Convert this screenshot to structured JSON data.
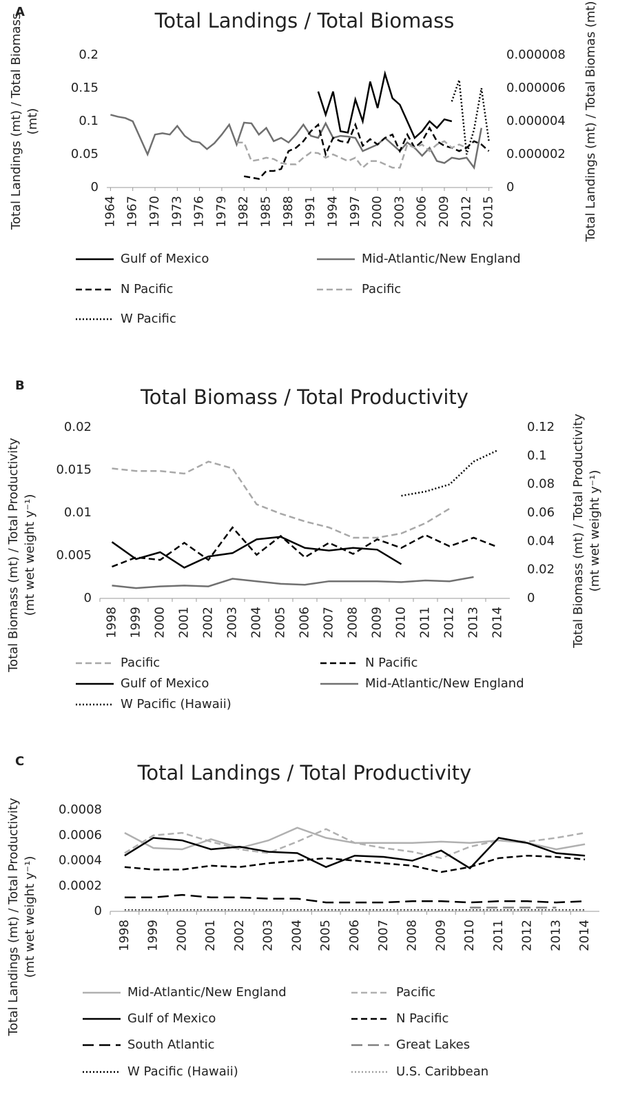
{
  "chart_data": [
    {
      "type": "line",
      "panel": "A",
      "title": "Total Landings / Total Biomass",
      "ylabel": [
        "Total Landings (mt) / Total Biomass",
        "(mt)"
      ],
      "y2label": [
        "Total Landings (mt) / Total Biomas (mt)"
      ],
      "x": [
        1964,
        1965,
        1966,
        1967,
        1968,
        1969,
        1970,
        1971,
        1972,
        1973,
        1974,
        1975,
        1976,
        1977,
        1978,
        1979,
        1980,
        1981,
        1982,
        1983,
        1984,
        1985,
        1986,
        1987,
        1988,
        1989,
        1990,
        1991,
        1992,
        1993,
        1994,
        1995,
        1996,
        1997,
        1998,
        1999,
        2000,
        2001,
        2002,
        2003,
        2004,
        2005,
        2006,
        2007,
        2008,
        2009,
        2010,
        2011,
        2012,
        2013,
        2014,
        2015
      ],
      "xlim": [
        1963.5,
        2015.5
      ],
      "xticks": [
        1964,
        1967,
        1970,
        1973,
        1976,
        1979,
        1982,
        1985,
        1988,
        1991,
        1994,
        1997,
        2000,
        2003,
        2006,
        2009,
        2012,
        2015
      ],
      "ylim": [
        0,
        0.2
      ],
      "yticks": [
        0,
        0.05,
        0.1,
        0.15,
        0.2
      ],
      "y2lim": [
        0,
        8e-06
      ],
      "y2ticks": [
        0,
        2e-06,
        4e-06,
        6e-06,
        8e-06
      ],
      "series": [
        {
          "name": "Gulf of Mexico",
          "color": "#000000",
          "style": "solid",
          "values": [
            null,
            null,
            null,
            null,
            null,
            null,
            null,
            null,
            null,
            null,
            null,
            null,
            null,
            null,
            null,
            null,
            null,
            null,
            null,
            null,
            null,
            null,
            null,
            null,
            null,
            null,
            null,
            null,
            0.145,
            0.11,
            0.145,
            0.085,
            0.083,
            0.133,
            0.1,
            0.16,
            0.12,
            0.172,
            0.135,
            0.125,
            0.1,
            0.075,
            0.085,
            0.1,
            0.09,
            0.103,
            0.1,
            null,
            null,
            null,
            null,
            null
          ]
        },
        {
          "name": "Mid-Atlantic/New England",
          "color": "#707070",
          "style": "solid",
          "values": [
            0.11,
            0.107,
            0.105,
            0.1,
            0.075,
            0.05,
            0.08,
            0.082,
            0.08,
            0.093,
            0.078,
            0.07,
            0.068,
            0.058,
            0.067,
            0.08,
            0.095,
            0.065,
            0.098,
            0.097,
            0.08,
            0.09,
            0.07,
            0.075,
            0.068,
            0.08,
            0.095,
            0.078,
            0.075,
            0.097,
            0.075,
            0.078,
            0.077,
            0.075,
            0.055,
            0.06,
            0.065,
            0.075,
            0.065,
            0.055,
            0.068,
            0.06,
            0.048,
            0.06,
            0.04,
            0.037,
            0.045,
            0.043,
            0.045,
            0.03,
            0.09,
            null
          ]
        },
        {
          "name": "N Pacific",
          "color": "#000000",
          "style": "dashed",
          "values": [
            null,
            null,
            null,
            null,
            null,
            null,
            null,
            null,
            null,
            null,
            null,
            null,
            null,
            null,
            null,
            null,
            null,
            null,
            0.017,
            0.015,
            0.013,
            0.025,
            0.025,
            0.028,
            0.055,
            0.06,
            0.07,
            0.085,
            0.095,
            0.05,
            0.075,
            0.07,
            0.068,
            0.095,
            0.063,
            0.073,
            0.065,
            0.075,
            0.08,
            0.055,
            0.08,
            0.06,
            0.07,
            0.09,
            0.07,
            0.063,
            0.06,
            0.055,
            0.06,
            0.07,
            0.065,
            0.055
          ]
        },
        {
          "name": "Pacific",
          "color": "#a8a8a8",
          "style": "dashed",
          "values": [
            null,
            null,
            null,
            null,
            null,
            null,
            null,
            null,
            null,
            null,
            null,
            null,
            null,
            null,
            null,
            null,
            null,
            0.068,
            0.068,
            0.04,
            0.042,
            0.045,
            0.043,
            0.037,
            0.035,
            0.035,
            0.045,
            0.053,
            0.052,
            0.045,
            0.05,
            0.045,
            0.04,
            0.045,
            0.03,
            0.04,
            0.04,
            0.035,
            0.03,
            0.03,
            0.065,
            0.06,
            0.065,
            0.055,
            0.065,
            0.07,
            0.06,
            0.065,
            0.06,
            null,
            null,
            null
          ]
        },
        {
          "name": "W Pacific",
          "color": "#000000",
          "style": "dotted",
          "axis": "y2",
          "values": [
            null,
            null,
            null,
            null,
            null,
            null,
            null,
            null,
            null,
            null,
            null,
            null,
            null,
            null,
            null,
            null,
            null,
            null,
            null,
            null,
            null,
            null,
            null,
            null,
            null,
            null,
            null,
            null,
            null,
            null,
            null,
            null,
            null,
            null,
            null,
            null,
            null,
            null,
            null,
            null,
            null,
            null,
            null,
            null,
            null,
            null,
            5.2e-06,
            6.5e-06,
            2e-06,
            3.5e-06,
            6e-06,
            2.8e-06
          ]
        }
      ]
    },
    {
      "type": "line",
      "panel": "B",
      "title": "Total Biomass / Total Productivity",
      "ylabel": [
        "Total Biomass (mt) / Total Productivity",
        "(mt wet weight y⁻¹)"
      ],
      "y2label": [
        "Total Biomass (mt) / Total Productivity",
        "(mt wet weight y⁻¹)"
      ],
      "categories": [
        "1998",
        "1999",
        "2000",
        "2001",
        "2002",
        "2003",
        "2004",
        "2005",
        "2006",
        "2007",
        "2008",
        "2009",
        "2010",
        "2011",
        "2012",
        "2013",
        "2014"
      ],
      "ylim": [
        0,
        0.02
      ],
      "yticks": [
        0,
        0.005,
        0.01,
        0.015,
        0.02
      ],
      "y2lim": [
        0,
        0.12
      ],
      "y2ticks": [
        0,
        0.02,
        0.04,
        0.06,
        0.08,
        0.1,
        0.12
      ],
      "series": [
        {
          "name": "Pacific",
          "color": "#a8a8a8",
          "style": "dashed",
          "values": [
            0.0152,
            0.0149,
            0.0149,
            0.0146,
            0.016,
            0.0152,
            0.011,
            0.0099,
            0.009,
            0.0083,
            0.0071,
            0.0071,
            0.0076,
            0.0088,
            0.0105,
            null,
            null
          ]
        },
        {
          "name": "N Pacific",
          "color": "#000000",
          "style": "dashed",
          "values": [
            0.0037,
            0.0048,
            0.0045,
            0.0065,
            0.0045,
            0.0083,
            0.0051,
            0.0073,
            0.0048,
            0.0065,
            0.0052,
            0.0069,
            0.0059,
            0.0074,
            0.0061,
            0.0071,
            0.006
          ]
        },
        {
          "name": "Gulf of Mexico",
          "color": "#000000",
          "style": "solid",
          "values": [
            0.0066,
            0.0046,
            0.0054,
            0.0036,
            0.0049,
            0.0053,
            0.0069,
            0.0072,
            0.0059,
            0.0056,
            0.0059,
            0.0057,
            0.004,
            null,
            null,
            null,
            null
          ]
        },
        {
          "name": "Mid-Atlantic/New England",
          "color": "#707070",
          "style": "solid",
          "values": [
            0.0015,
            0.0012,
            0.0014,
            0.0015,
            0.0014,
            0.0023,
            0.002,
            0.0017,
            0.0016,
            0.002,
            0.002,
            0.002,
            0.0019,
            0.0021,
            0.002,
            0.0025,
            null
          ]
        },
        {
          "name": "W Pacific (Hawaii)",
          "color": "#000000",
          "style": "dotted",
          "axis": "y2",
          "values": [
            null,
            null,
            null,
            null,
            null,
            null,
            null,
            null,
            null,
            null,
            null,
            null,
            0.072,
            0.075,
            0.08,
            0.096,
            0.104
          ]
        }
      ]
    },
    {
      "type": "line",
      "panel": "C",
      "title": "Total Landings / Total Productivity",
      "ylabel": [
        "Total Landings (mt) / Total Productivity",
        "(mt wet weight y⁻¹)"
      ],
      "categories": [
        "1998",
        "1999",
        "2000",
        "2001",
        "2002",
        "2003",
        "2004",
        "2005",
        "2006",
        "2007",
        "2008",
        "2009",
        "2010",
        "2011",
        "2012",
        "2013",
        "2014"
      ],
      "ylim": [
        0,
        0.0008
      ],
      "yticks": [
        0,
        0.0002,
        0.0004,
        0.0006,
        0.0008
      ],
      "series": [
        {
          "name": "Mid-Atlantic/New England",
          "color": "#b0b0b0",
          "style": "solid",
          "values": [
            0.00062,
            0.0005,
            0.00049,
            0.00057,
            0.0005,
            0.00056,
            0.00066,
            0.00058,
            0.00054,
            0.00054,
            0.00054,
            0.00055,
            0.00054,
            0.00056,
            0.00054,
            0.00049,
            0.00053
          ]
        },
        {
          "name": "Pacific",
          "color": "#b0b0b0",
          "style": "dashed",
          "values": [
            0.00046,
            0.0006,
            0.00062,
            0.00055,
            0.00049,
            0.00046,
            0.00055,
            0.00065,
            0.00054,
            0.0005,
            0.00047,
            0.00042,
            0.00051,
            0.00056,
            0.00055,
            0.00058,
            0.00062
          ]
        },
        {
          "name": "Gulf of Mexico",
          "color": "#000000",
          "style": "solid",
          "values": [
            0.00044,
            0.00058,
            0.00056,
            0.00049,
            0.00051,
            0.00047,
            0.00046,
            0.00035,
            0.00044,
            0.00043,
            0.0004,
            0.00048,
            0.00034,
            0.00058,
            0.00054,
            0.00046,
            0.00044
          ]
        },
        {
          "name": "N Pacific",
          "color": "#000000",
          "style": "dashed",
          "values": [
            0.00035,
            0.00033,
            0.00033,
            0.00036,
            0.00035,
            0.00038,
            0.0004,
            0.00042,
            0.0004,
            0.00038,
            0.00036,
            0.00031,
            0.00035,
            0.00042,
            0.00044,
            0.00043,
            0.00041
          ]
        },
        {
          "name": "South Atlantic",
          "color": "#000000",
          "style": "longdash",
          "values": [
            0.00011,
            0.00011,
            0.00013,
            0.00011,
            0.00011,
            0.0001,
            0.0001,
            7e-05,
            7e-05,
            7e-05,
            8e-05,
            8e-05,
            7e-05,
            8e-05,
            8e-05,
            7e-05,
            8e-05
          ]
        },
        {
          "name": "Great Lakes",
          "color": "#808080",
          "style": "longdash",
          "values": [
            null,
            null,
            null,
            null,
            null,
            null,
            null,
            null,
            null,
            null,
            null,
            null,
            3e-05,
            3e-05,
            3e-05,
            3e-05,
            null
          ]
        },
        {
          "name": "W Pacific (Hawaii)",
          "color": "#000000",
          "style": "dotted",
          "values": [
            1e-05,
            1e-05,
            1e-05,
            1e-05,
            1e-05,
            1e-05,
            1e-05,
            1e-05,
            1e-05,
            1e-05,
            1e-05,
            1e-05,
            1e-05,
            1e-05,
            1e-05,
            1e-05,
            1e-05
          ]
        },
        {
          "name": "U.S. Caribbean",
          "color": "#a0a0a0",
          "style": "dotted",
          "values": [
            5e-06,
            5e-06,
            5e-06,
            5e-06,
            5e-06,
            5e-06,
            5e-06,
            5e-06,
            5e-06,
            5e-06,
            5e-06,
            5e-06,
            5e-06,
            5e-06,
            5e-06,
            5e-06,
            5e-06
          ]
        }
      ]
    }
  ]
}
